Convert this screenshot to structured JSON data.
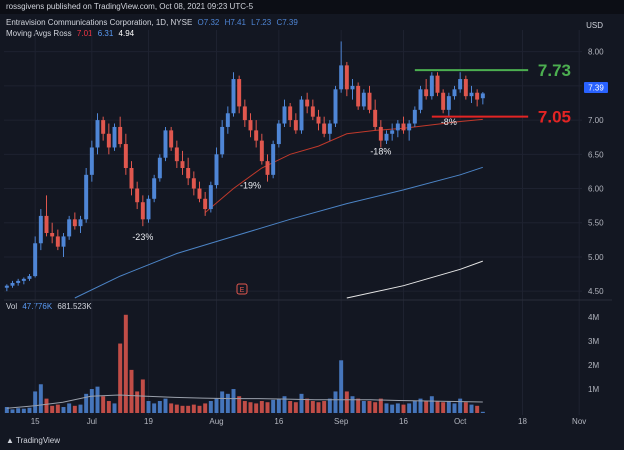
{
  "header": {
    "published": "rossgivens published on TradingView.com, Oct 08, 2021 09:23 UTC-5"
  },
  "legend": {
    "symbol": "Entravision Communications Corporation, 1D, NYSE",
    "ohlc": [
      "O7.32",
      "H7.41",
      "L7.23",
      "C7.39"
    ],
    "ma_name": "Moving Avgs Ross",
    "ma_values": [
      "7.01",
      "6.31",
      "4.94"
    ],
    "ma_colors": [
      "#f23645",
      "#5b9cf6",
      "#ffffff"
    ],
    "vol_name": "Vol",
    "vol_values": [
      "47.776K",
      "681.523K"
    ]
  },
  "footer": {
    "brand": "TradingView"
  },
  "colors": {
    "up": "#4f86d6",
    "down": "#e0574e",
    "bg": "#131722",
    "green_line": "#4caf50",
    "red_line": "#e32424"
  },
  "chart_data": {
    "type": "candlestick",
    "currency": "USD",
    "last_price": "7.39",
    "price_ticks": [
      "8.00",
      "7.50",
      "7.00",
      "6.50",
      "6.00",
      "5.50",
      "5.00",
      "4.50"
    ],
    "ylim": [
      4.4,
      8.2
    ],
    "volume_ticks": [
      "4M",
      "3M",
      "2M",
      "1M"
    ],
    "volume_ylim": [
      0,
      4.3
    ],
    "x_ticks": [
      "15",
      "Jul",
      "19",
      "Aug",
      "16",
      "Sep",
      "16",
      "Oct",
      "18",
      "Nov"
    ],
    "x_tick_bars": [
      5,
      15,
      25,
      37,
      48,
      59,
      70,
      80,
      91,
      101
    ],
    "n_bars_span": 102,
    "candles": [
      [
        4.55,
        4.6,
        4.5,
        4.58
      ],
      [
        4.58,
        4.65,
        4.55,
        4.62
      ],
      [
        4.62,
        4.68,
        4.58,
        4.65
      ],
      [
        4.65,
        4.7,
        4.6,
        4.68
      ],
      [
        4.68,
        4.75,
        4.65,
        4.72
      ],
      [
        4.72,
        5.3,
        4.7,
        5.2
      ],
      [
        5.2,
        5.7,
        5.1,
        5.6
      ],
      [
        5.6,
        5.9,
        5.3,
        5.35
      ],
      [
        5.35,
        5.5,
        5.2,
        5.3
      ],
      [
        5.3,
        5.4,
        5.1,
        5.15
      ],
      [
        5.15,
        5.35,
        5.0,
        5.3
      ],
      [
        5.3,
        5.6,
        5.25,
        5.55
      ],
      [
        5.55,
        5.65,
        5.4,
        5.45
      ],
      [
        5.45,
        5.6,
        5.35,
        5.55
      ],
      [
        5.55,
        6.3,
        5.5,
        6.2
      ],
      [
        6.2,
        6.7,
        6.1,
        6.6
      ],
      [
        6.6,
        7.1,
        6.5,
        7.0
      ],
      [
        7.0,
        7.05,
        6.7,
        6.8
      ],
      [
        6.8,
        6.95,
        6.5,
        6.6
      ],
      [
        6.6,
        6.95,
        6.55,
        6.9
      ],
      [
        6.9,
        7.05,
        6.6,
        6.65
      ],
      [
        6.65,
        6.8,
        6.2,
        6.3
      ],
      [
        6.3,
        6.4,
        5.9,
        6.0
      ],
      [
        6.0,
        6.1,
        5.7,
        5.8
      ],
      [
        5.8,
        5.9,
        5.45,
        5.55
      ],
      [
        5.55,
        5.9,
        5.5,
        5.85
      ],
      [
        5.85,
        6.2,
        5.8,
        6.15
      ],
      [
        6.15,
        6.5,
        6.1,
        6.45
      ],
      [
        6.45,
        6.9,
        6.4,
        6.85
      ],
      [
        6.85,
        6.9,
        6.55,
        6.6
      ],
      [
        6.6,
        6.7,
        6.3,
        6.4
      ],
      [
        6.4,
        6.55,
        6.2,
        6.3
      ],
      [
        6.3,
        6.45,
        6.05,
        6.15
      ],
      [
        6.15,
        6.25,
        5.9,
        6.0
      ],
      [
        6.0,
        6.1,
        5.8,
        5.85
      ],
      [
        5.85,
        5.95,
        5.6,
        5.7
      ],
      [
        5.7,
        6.1,
        5.65,
        6.05
      ],
      [
        6.05,
        6.6,
        6.0,
        6.5
      ],
      [
        6.5,
        7.0,
        6.45,
        6.9
      ],
      [
        6.9,
        7.2,
        6.8,
        7.1
      ],
      [
        7.1,
        7.7,
        7.05,
        7.6
      ],
      [
        7.6,
        7.65,
        7.1,
        7.2
      ],
      [
        7.2,
        7.3,
        6.9,
        7.0
      ],
      [
        7.0,
        7.1,
        6.75,
        6.85
      ],
      [
        6.85,
        7.0,
        6.6,
        6.7
      ],
      [
        6.7,
        6.8,
        6.35,
        6.4
      ],
      [
        6.4,
        6.5,
        6.1,
        6.2
      ],
      [
        6.2,
        6.7,
        6.15,
        6.65
      ],
      [
        6.65,
        7.0,
        6.6,
        6.95
      ],
      [
        6.95,
        7.3,
        6.9,
        7.2
      ],
      [
        7.2,
        7.25,
        6.9,
        7.0
      ],
      [
        7.0,
        7.1,
        6.8,
        6.85
      ],
      [
        6.85,
        7.35,
        6.8,
        7.3
      ],
      [
        7.3,
        7.4,
        7.1,
        7.2
      ],
      [
        7.2,
        7.3,
        7.0,
        7.05
      ],
      [
        7.05,
        7.15,
        6.85,
        6.95
      ],
      [
        6.95,
        7.05,
        6.75,
        6.8
      ],
      [
        6.8,
        7.0,
        6.7,
        6.95
      ],
      [
        6.95,
        7.5,
        6.9,
        7.45
      ],
      [
        7.45,
        8.15,
        7.4,
        7.8
      ],
      [
        7.8,
        7.85,
        7.35,
        7.45
      ],
      [
        7.45,
        7.6,
        7.3,
        7.5
      ],
      [
        7.5,
        7.55,
        7.15,
        7.2
      ],
      [
        7.2,
        7.45,
        7.15,
        7.4
      ],
      [
        7.4,
        7.5,
        7.1,
        7.15
      ],
      [
        7.15,
        7.3,
        6.85,
        6.9
      ],
      [
        6.9,
        7.0,
        6.6,
        6.7
      ],
      [
        6.7,
        6.85,
        6.65,
        6.8
      ],
      [
        6.8,
        6.95,
        6.7,
        6.85
      ],
      [
        6.85,
        7.0,
        6.75,
        6.95
      ],
      [
        6.95,
        7.05,
        6.8,
        6.85
      ],
      [
        6.85,
        7.0,
        6.7,
        6.95
      ],
      [
        6.95,
        7.2,
        6.9,
        7.15
      ],
      [
        7.15,
        7.5,
        7.1,
        7.45
      ],
      [
        7.45,
        7.6,
        7.3,
        7.35
      ],
      [
        7.35,
        7.7,
        7.3,
        7.65
      ],
      [
        7.65,
        7.7,
        7.35,
        7.4
      ],
      [
        7.4,
        7.45,
        7.1,
        7.15
      ],
      [
        7.15,
        7.4,
        7.05,
        7.35
      ],
      [
        7.35,
        7.5,
        7.3,
        7.45
      ],
      [
        7.45,
        7.7,
        7.4,
        7.6
      ],
      [
        7.6,
        7.65,
        7.3,
        7.35
      ],
      [
        7.35,
        7.5,
        7.25,
        7.4
      ],
      [
        7.4,
        7.45,
        7.2,
        7.3
      ],
      [
        7.32,
        7.41,
        7.23,
        7.39
      ]
    ],
    "volumes": [
      0.25,
      0.15,
      0.2,
      0.18,
      0.22,
      0.9,
      1.2,
      0.6,
      0.3,
      0.35,
      0.25,
      0.4,
      0.3,
      0.35,
      0.8,
      1.0,
      1.1,
      0.7,
      0.5,
      0.4,
      2.9,
      4.1,
      1.8,
      0.9,
      1.4,
      0.5,
      0.4,
      0.5,
      0.6,
      0.4,
      0.35,
      0.3,
      0.3,
      0.35,
      0.3,
      0.4,
      0.5,
      0.6,
      0.9,
      0.8,
      1.0,
      0.7,
      0.5,
      0.45,
      0.4,
      0.5,
      0.45,
      0.55,
      0.6,
      0.7,
      0.5,
      0.45,
      0.8,
      0.6,
      0.5,
      0.45,
      0.5,
      0.6,
      0.9,
      2.2,
      0.9,
      0.7,
      0.6,
      0.5,
      0.5,
      0.45,
      0.6,
      0.4,
      0.35,
      0.4,
      0.35,
      0.4,
      0.5,
      0.6,
      0.5,
      0.7,
      0.5,
      0.45,
      0.5,
      0.4,
      0.6,
      0.45,
      0.35,
      0.3,
      0.05
    ],
    "ma_short": [
      [
        35,
        5.65
      ],
      [
        40,
        6.0
      ],
      [
        45,
        6.3
      ],
      [
        50,
        6.5
      ],
      [
        55,
        6.62
      ],
      [
        60,
        6.8
      ],
      [
        65,
        6.85
      ],
      [
        70,
        6.88
      ],
      [
        75,
        6.93
      ],
      [
        80,
        6.98
      ],
      [
        84,
        7.01
      ]
    ],
    "ma_mid": [
      [
        12,
        4.4
      ],
      [
        20,
        4.72
      ],
      [
        30,
        5.05
      ],
      [
        40,
        5.3
      ],
      [
        50,
        5.55
      ],
      [
        60,
        5.78
      ],
      [
        70,
        5.98
      ],
      [
        80,
        6.2
      ],
      [
        84,
        6.31
      ]
    ],
    "ma_long": [
      [
        60,
        4.4
      ],
      [
        70,
        4.58
      ],
      [
        80,
        4.82
      ],
      [
        84,
        4.94
      ]
    ],
    "volume_ma": [
      0.2,
      0.3,
      0.45,
      0.7,
      0.75,
      0.7,
      0.65,
      0.62,
      0.6,
      0.6,
      0.58,
      0.55,
      0.55,
      0.55,
      0.52,
      0.5,
      0.48,
      0.46
    ],
    "annotations": [
      {
        "text": "-23%",
        "bar": 24,
        "price": 5.25
      },
      {
        "text": "-19%",
        "bar": 43,
        "price": 6.0
      },
      {
        "text": "-18%",
        "bar": 66,
        "price": 6.5
      },
      {
        "text": "-8%",
        "bar": 78,
        "price": 6.93
      }
    ],
    "levels": [
      {
        "label": "7.73",
        "value": 7.73,
        "color": "#4caf50",
        "from_bar": 72,
        "to_bar": 92
      },
      {
        "label": "7.05",
        "value": 7.05,
        "color": "#e32424",
        "from_bar": 75,
        "to_bar": 92
      }
    ]
  }
}
